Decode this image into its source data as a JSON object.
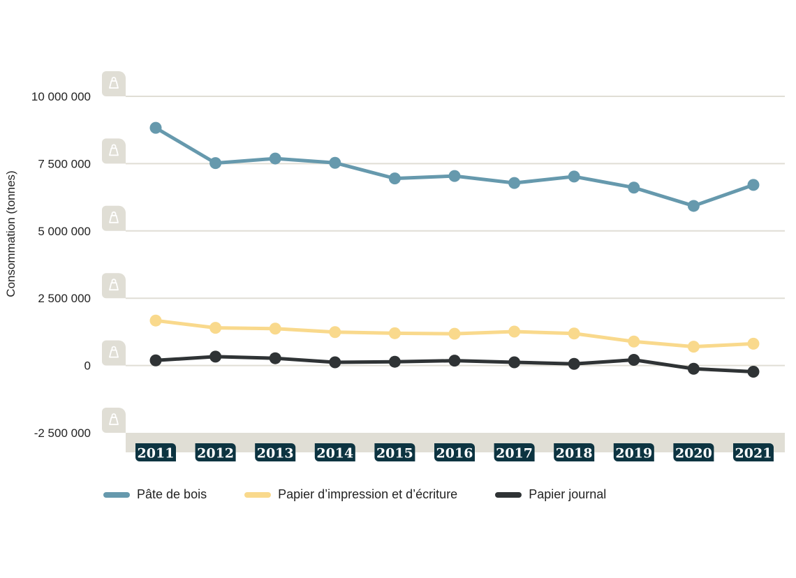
{
  "chart_data": {
    "type": "line",
    "xlabel": "",
    "ylabel": "Consommation (tonnes)",
    "categories": [
      "2011",
      "2012",
      "2013",
      "2014",
      "2015",
      "2016",
      "2017",
      "2018",
      "2019",
      "2020",
      "2021"
    ],
    "ylim": [
      -2500000,
      10000000
    ],
    "yticks": [
      10000000,
      7500000,
      5000000,
      2500000,
      0,
      -2500000
    ],
    "ytick_labels": [
      "10 000 000",
      "7 500 000",
      "5 000 000",
      "2 500 000",
      "0",
      "-2 500 000"
    ],
    "grid": true,
    "legend_position": "bottom",
    "series": [
      {
        "name": "Pâte de bois",
        "color": "#6699ad",
        "values": [
          8830000,
          7520000,
          7690000,
          7530000,
          6950000,
          7040000,
          6780000,
          7020000,
          6610000,
          5930000,
          6710000
        ]
      },
      {
        "name": "Papier d’impression et d’écriture",
        "color": "#f9d98c",
        "values": [
          1670000,
          1400000,
          1370000,
          1240000,
          1200000,
          1180000,
          1260000,
          1190000,
          890000,
          700000,
          810000
        ]
      },
      {
        "name": "Papier journal",
        "color": "#2f3335",
        "values": [
          190000,
          330000,
          270000,
          120000,
          140000,
          180000,
          120000,
          60000,
          210000,
          -120000,
          -230000
        ]
      }
    ]
  }
}
